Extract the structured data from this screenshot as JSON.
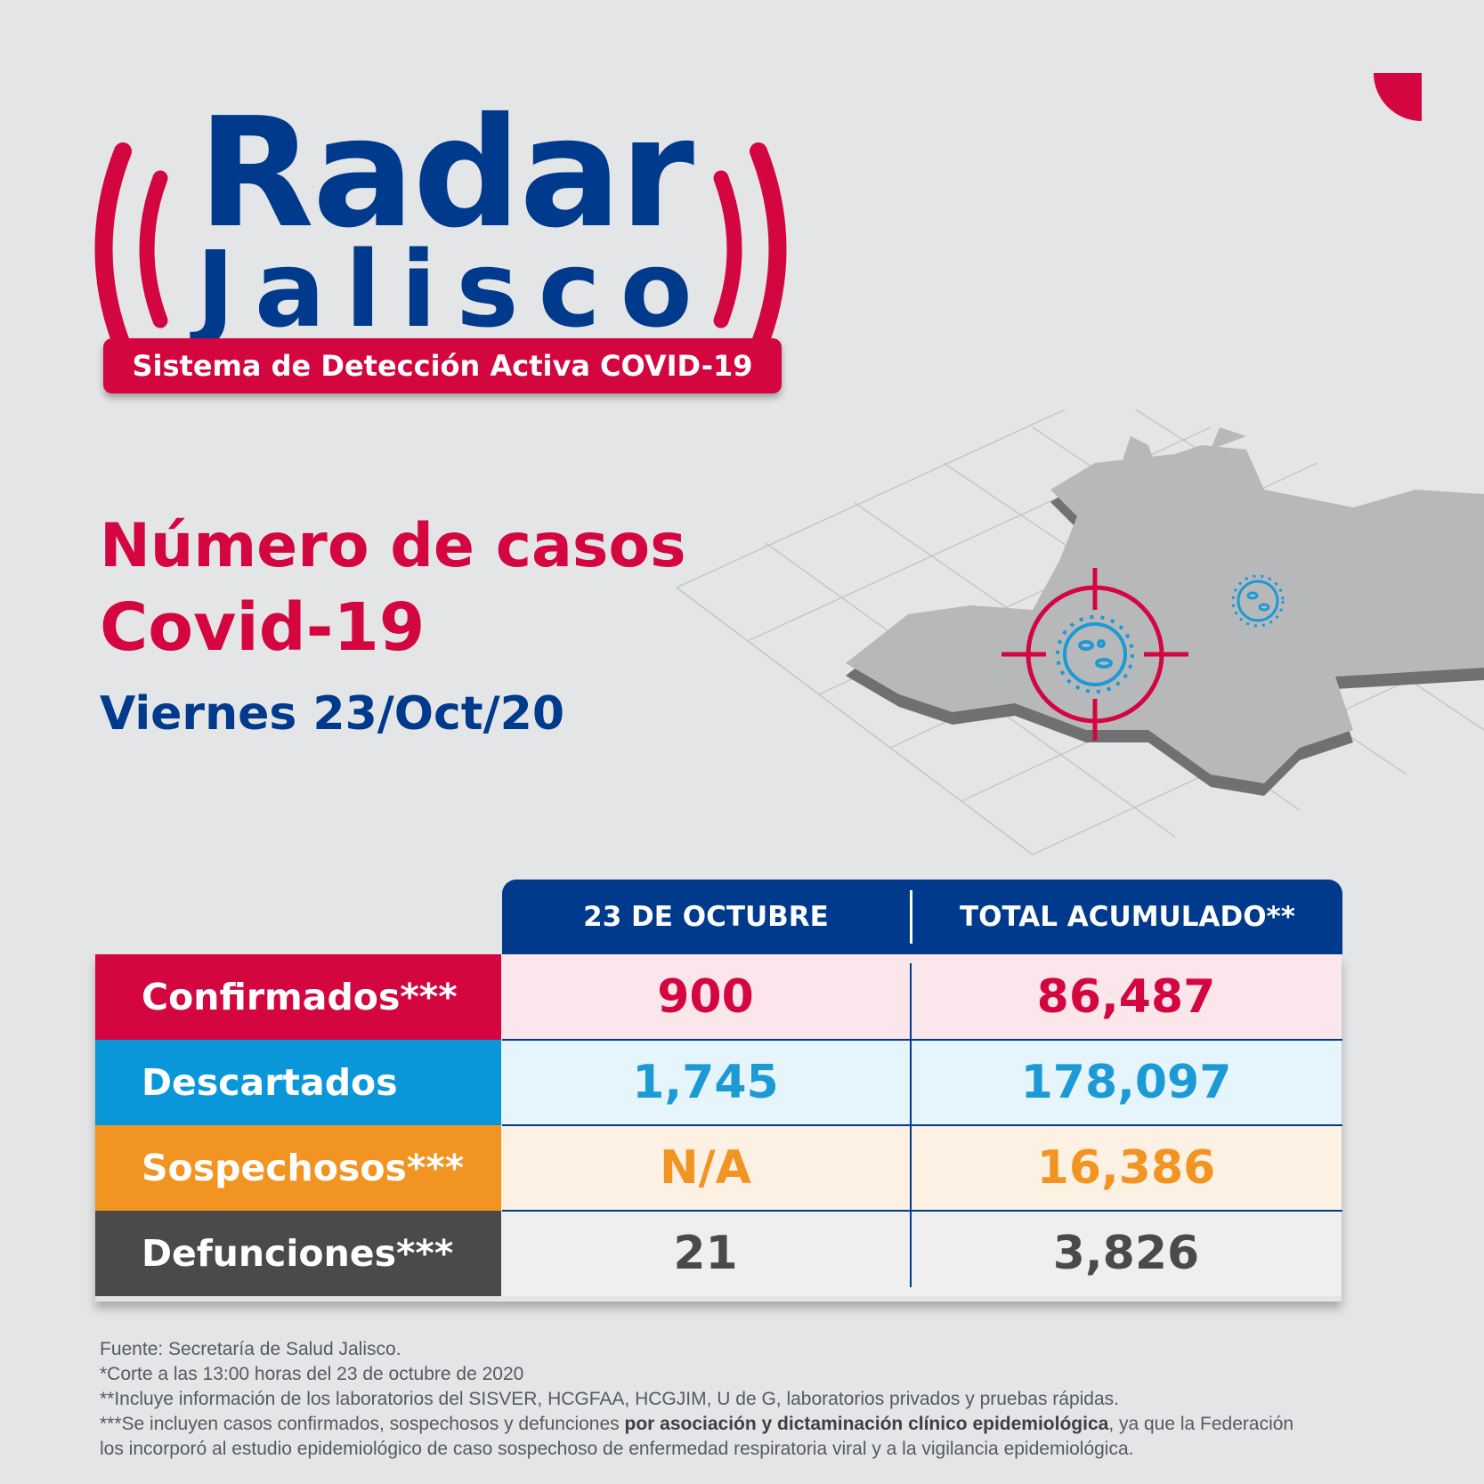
{
  "logo": {
    "title": "Radar",
    "subtitle": "Jalisco",
    "tagline": "Sistema de Detección Activa COVID-19"
  },
  "headline": {
    "line1": "Número de casos",
    "line2": "Covid-19",
    "date": "Viernes 23/Oct/20"
  },
  "table": {
    "headers": [
      "23 DE OCTUBRE",
      "TOTAL ACUMULADO**"
    ],
    "rows": [
      {
        "label": "Confirmados***",
        "daily": "900",
        "total": "86,487",
        "label_bg": "#d3063f",
        "cell_bg": "#fbe6ec",
        "value_color": "#d3063f"
      },
      {
        "label": "Descartados",
        "daily": "1,745",
        "total": "178,097",
        "label_bg": "#0a97d9",
        "cell_bg": "#e6f4fb",
        "value_color": "#1c9ad6"
      },
      {
        "label": "Sospechosos***",
        "daily": "N/A",
        "total": "16,386",
        "label_bg": "#f29422",
        "cell_bg": "#fdf1e4",
        "value_color": "#f29422"
      },
      {
        "label": "Defunciones***",
        "daily": "21",
        "total": "3,826",
        "label_bg": "#4a4a4c",
        "cell_bg": "#efeff0",
        "value_color": "#4a4a4c"
      }
    ]
  },
  "notes": {
    "line1": "Fuente: Secretaría de Salud Jalisco.",
    "line2": "*Corte a las 13:00 horas del 23 de octubre de 2020",
    "line3": "**Incluye información de los laboratorios del SISVER, HCGFAA, HCGJIM, U de G, laboratorios privados y pruebas rápidas.",
    "line4_start": "***Se incluyen casos confirmados, sospechosos y defunciones ",
    "line4_bold": "por asociación y dictaminación clínico epidemiológica",
    "line4_end": ", ya que la Federación",
    "line5": "los incorporó al estudio epidemiológico de caso sospechoso de enfermedad respiratoria viral y a la vigilancia epidemiológica."
  },
  "icons": {
    "map": "jalisco-map-illustration",
    "target": "crosshair-target-icon",
    "virus": "virus-icon"
  },
  "colors": {
    "brand_red": "#d3063f",
    "brand_blue": "#003a8c",
    "background": "#e4e5e7"
  }
}
